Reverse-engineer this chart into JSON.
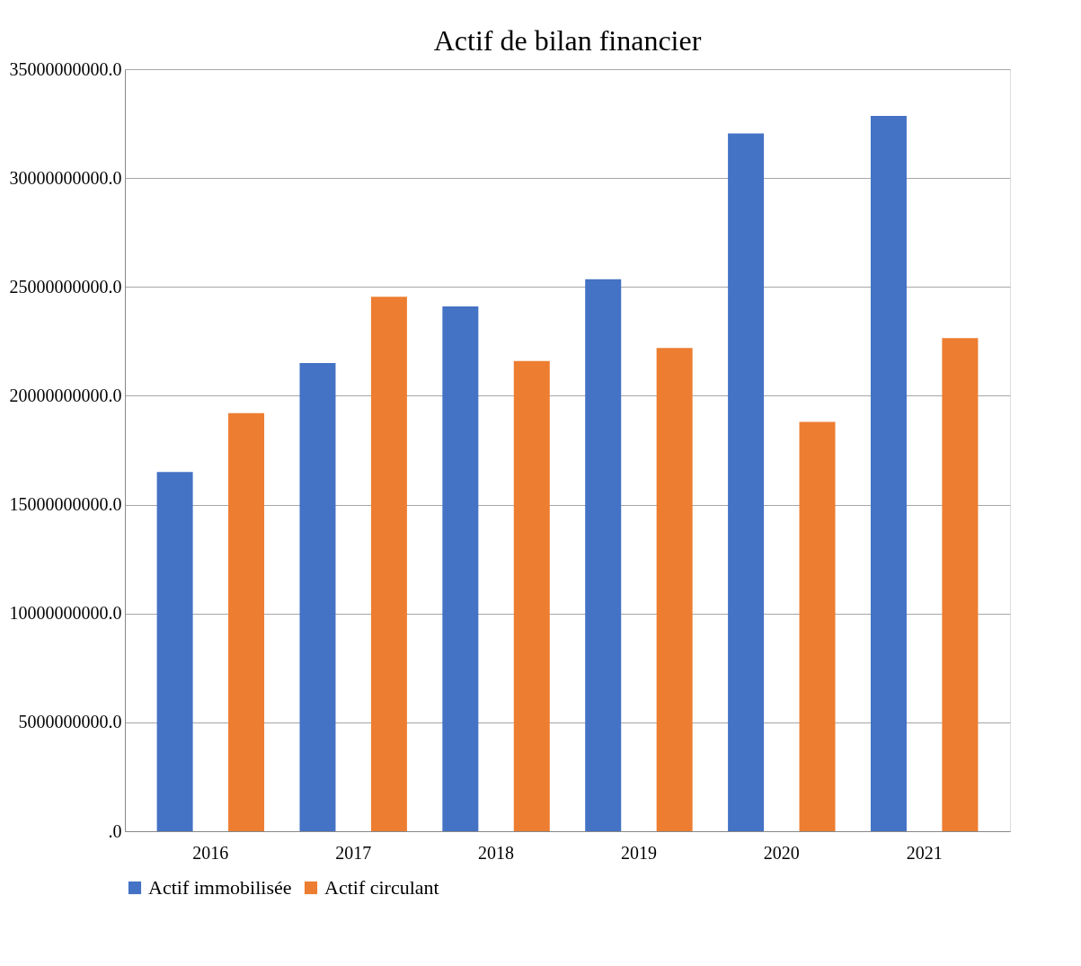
{
  "chart_data": {
    "type": "bar",
    "title": "Actif de bilan financier",
    "categories": [
      "2016",
      "2017",
      "2018",
      "2019",
      "2020",
      "2021"
    ],
    "series": [
      {
        "name": "Actif immobilisée",
        "color": "#4472c4",
        "values": [
          16500000000,
          21500000000,
          24100000000,
          25350000000,
          32050000000,
          32850000000
        ]
      },
      {
        "name": "Actif circulant",
        "color": "#ed7d31",
        "values": [
          19200000000,
          24550000000,
          21600000000,
          22200000000,
          18800000000,
          22650000000
        ]
      }
    ],
    "ylim": [
      0,
      35000000000
    ],
    "yticks": [
      {
        "value": 0,
        "label": ".0"
      },
      {
        "value": 5000000000,
        "label": "5000000000.0"
      },
      {
        "value": 10000000000,
        "label": "10000000000.0"
      },
      {
        "value": 15000000000,
        "label": "15000000000.0"
      },
      {
        "value": 20000000000,
        "label": "20000000000.0"
      },
      {
        "value": 25000000000,
        "label": "25000000000.0"
      },
      {
        "value": 30000000000,
        "label": "30000000000.0"
      },
      {
        "value": 35000000000,
        "label": "35000000000.0"
      }
    ],
    "grid": "y",
    "legend": "bottom"
  }
}
